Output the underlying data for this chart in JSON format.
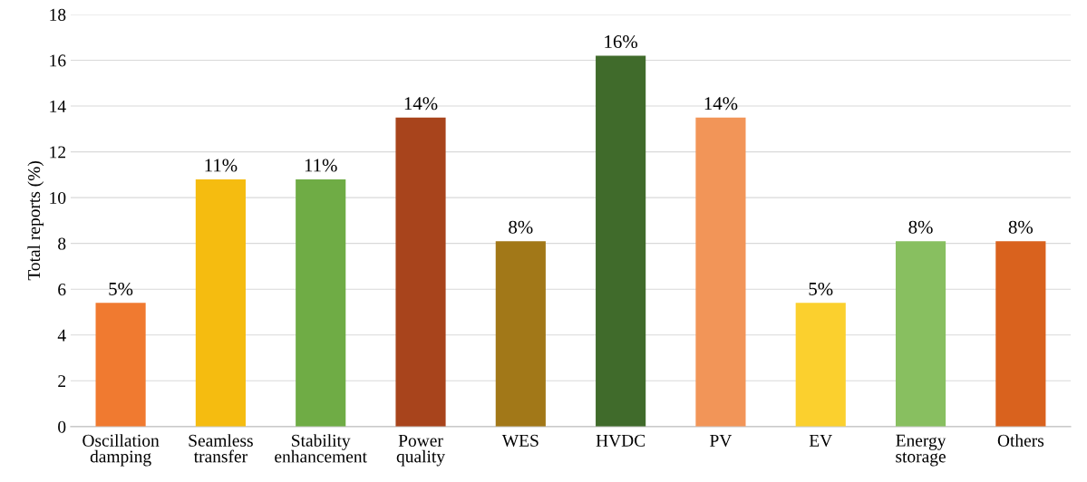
{
  "chart_data": {
    "type": "bar",
    "ylabel": "Total reports (%)",
    "categories": [
      "Oscillation\ndamping",
      "Seamless\ntransfer",
      "Stability\nenhancement",
      "Power\nquality",
      "WES",
      "HVDC",
      "PV",
      "EV",
      "Energy\nstorage",
      "Others"
    ],
    "values": [
      5.4,
      10.8,
      10.8,
      13.5,
      8.1,
      16.2,
      13.5,
      5.4,
      8.1,
      8.1
    ],
    "value_labels": [
      "5%",
      "11%",
      "11%",
      "14%",
      "8%",
      "16%",
      "14%",
      "5%",
      "8%",
      "8%"
    ],
    "colors": [
      "#f07a30",
      "#f5bc10",
      "#6fac45",
      "#a8441c",
      "#a27818",
      "#406b2b",
      "#f29558",
      "#fbd02e",
      "#88bf60",
      "#d9621e"
    ],
    "ylim": [
      0,
      18
    ],
    "yticks": [
      0,
      2,
      4,
      6,
      8,
      10,
      12,
      14,
      16,
      18
    ],
    "grid": "y"
  }
}
